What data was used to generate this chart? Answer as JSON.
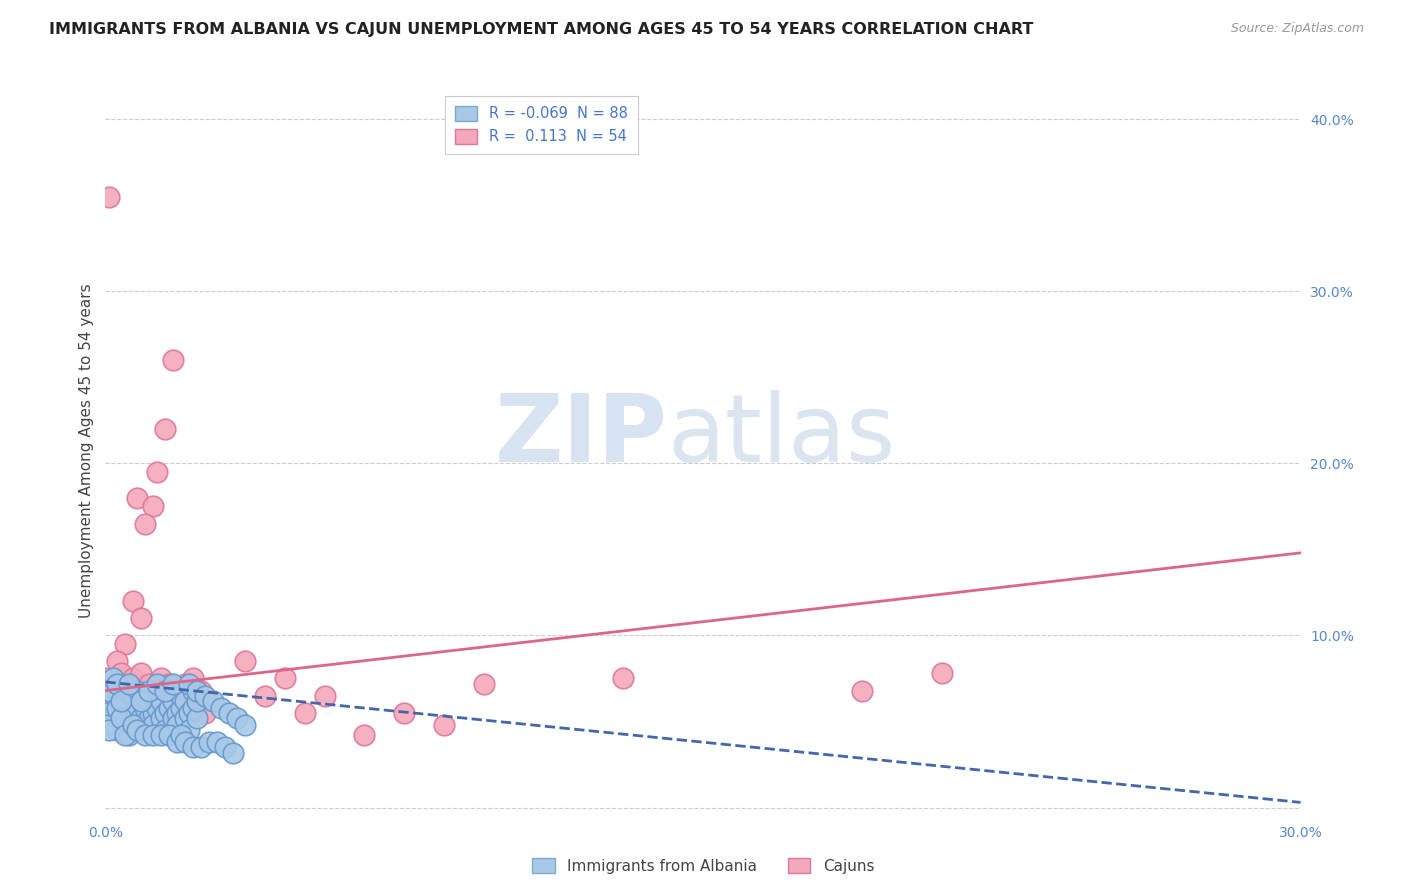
{
  "title": "IMMIGRANTS FROM ALBANIA VS CAJUN UNEMPLOYMENT AMONG AGES 45 TO 54 YEARS CORRELATION CHART",
  "source": "Source: ZipAtlas.com",
  "ylabel": "Unemployment Among Ages 45 to 54 years",
  "xlim": [
    0.0,
    0.3
  ],
  "ylim": [
    -0.005,
    0.42
  ],
  "series1_label": "Immigrants from Albania",
  "series2_label": "Cajuns",
  "series1_color": "#a8c8e8",
  "series2_color": "#f4a8bc",
  "series1_edge_color": "#6699cc",
  "series2_edge_color": "#dd7799",
  "trendline1_color": "#4466aa",
  "trendline2_color": "#dd6688",
  "watermark_zip": "ZIP",
  "watermark_atlas": "atlas",
  "background_color": "#ffffff",
  "grid_color": "#cccccc",
  "trendline1_x": [
    0.0,
    0.3
  ],
  "trendline1_y": [
    0.073,
    0.003
  ],
  "trendline2_x": [
    0.0,
    0.3
  ],
  "trendline2_y": [
    0.068,
    0.148
  ],
  "series1_points": [
    [
      0.001,
      0.055
    ],
    [
      0.001,
      0.062
    ],
    [
      0.002,
      0.058
    ],
    [
      0.002,
      0.048
    ],
    [
      0.002,
      0.07
    ],
    [
      0.003,
      0.052
    ],
    [
      0.003,
      0.065
    ],
    [
      0.003,
      0.045
    ],
    [
      0.004,
      0.058
    ],
    [
      0.004,
      0.068
    ],
    [
      0.005,
      0.055
    ],
    [
      0.005,
      0.062
    ],
    [
      0.005,
      0.048
    ],
    [
      0.006,
      0.058
    ],
    [
      0.006,
      0.065
    ],
    [
      0.006,
      0.042
    ],
    [
      0.007,
      0.055
    ],
    [
      0.007,
      0.062
    ],
    [
      0.008,
      0.058
    ],
    [
      0.008,
      0.068
    ],
    [
      0.009,
      0.052
    ],
    [
      0.009,
      0.045
    ],
    [
      0.01,
      0.058
    ],
    [
      0.01,
      0.065
    ],
    [
      0.011,
      0.052
    ],
    [
      0.011,
      0.062
    ],
    [
      0.012,
      0.055
    ],
    [
      0.012,
      0.048
    ],
    [
      0.013,
      0.058
    ],
    [
      0.013,
      0.065
    ],
    [
      0.014,
      0.052
    ],
    [
      0.014,
      0.062
    ],
    [
      0.015,
      0.055
    ],
    [
      0.015,
      0.045
    ],
    [
      0.016,
      0.058
    ],
    [
      0.016,
      0.068
    ],
    [
      0.017,
      0.052
    ],
    [
      0.017,
      0.062
    ],
    [
      0.018,
      0.055
    ],
    [
      0.018,
      0.048
    ],
    [
      0.019,
      0.058
    ],
    [
      0.019,
      0.065
    ],
    [
      0.02,
      0.052
    ],
    [
      0.02,
      0.062
    ],
    [
      0.021,
      0.055
    ],
    [
      0.021,
      0.045
    ],
    [
      0.022,
      0.058
    ],
    [
      0.022,
      0.068
    ],
    [
      0.023,
      0.052
    ],
    [
      0.023,
      0.062
    ],
    [
      0.0,
      0.062
    ],
    [
      0.0,
      0.055
    ],
    [
      0.0,
      0.048
    ],
    [
      0.001,
      0.045
    ],
    [
      0.001,
      0.068
    ],
    [
      0.002,
      0.075
    ],
    [
      0.003,
      0.058
    ],
    [
      0.003,
      0.072
    ],
    [
      0.004,
      0.052
    ],
    [
      0.004,
      0.062
    ],
    [
      0.005,
      0.042
    ],
    [
      0.006,
      0.072
    ],
    [
      0.007,
      0.048
    ],
    [
      0.008,
      0.045
    ],
    [
      0.009,
      0.062
    ],
    [
      0.01,
      0.042
    ],
    [
      0.011,
      0.068
    ],
    [
      0.012,
      0.042
    ],
    [
      0.013,
      0.072
    ],
    [
      0.014,
      0.042
    ],
    [
      0.015,
      0.068
    ],
    [
      0.016,
      0.042
    ],
    [
      0.017,
      0.072
    ],
    [
      0.018,
      0.038
    ],
    [
      0.019,
      0.042
    ],
    [
      0.02,
      0.038
    ],
    [
      0.021,
      0.072
    ],
    [
      0.022,
      0.035
    ],
    [
      0.023,
      0.068
    ],
    [
      0.024,
      0.035
    ],
    [
      0.025,
      0.065
    ],
    [
      0.026,
      0.038
    ],
    [
      0.027,
      0.062
    ],
    [
      0.028,
      0.038
    ],
    [
      0.029,
      0.058
    ],
    [
      0.03,
      0.035
    ],
    [
      0.031,
      0.055
    ],
    [
      0.032,
      0.032
    ],
    [
      0.033,
      0.052
    ],
    [
      0.035,
      0.048
    ]
  ],
  "series2_points": [
    [
      0.001,
      0.355
    ],
    [
      0.017,
      0.26
    ],
    [
      0.015,
      0.22
    ],
    [
      0.013,
      0.195
    ],
    [
      0.008,
      0.18
    ],
    [
      0.012,
      0.175
    ],
    [
      0.01,
      0.165
    ],
    [
      0.005,
      0.095
    ],
    [
      0.007,
      0.12
    ],
    [
      0.009,
      0.11
    ],
    [
      0.0,
      0.075
    ],
    [
      0.001,
      0.07
    ],
    [
      0.002,
      0.065
    ],
    [
      0.003,
      0.055
    ],
    [
      0.003,
      0.085
    ],
    [
      0.004,
      0.062
    ],
    [
      0.004,
      0.078
    ],
    [
      0.005,
      0.058
    ],
    [
      0.005,
      0.072
    ],
    [
      0.006,
      0.065
    ],
    [
      0.006,
      0.055
    ],
    [
      0.007,
      0.062
    ],
    [
      0.007,
      0.075
    ],
    [
      0.008,
      0.068
    ],
    [
      0.009,
      0.058
    ],
    [
      0.009,
      0.078
    ],
    [
      0.01,
      0.065
    ],
    [
      0.011,
      0.072
    ],
    [
      0.012,
      0.058
    ],
    [
      0.013,
      0.068
    ],
    [
      0.014,
      0.075
    ],
    [
      0.015,
      0.062
    ],
    [
      0.016,
      0.072
    ],
    [
      0.017,
      0.058
    ],
    [
      0.018,
      0.065
    ],
    [
      0.019,
      0.055
    ],
    [
      0.02,
      0.072
    ],
    [
      0.021,
      0.062
    ],
    [
      0.022,
      0.075
    ],
    [
      0.023,
      0.058
    ],
    [
      0.024,
      0.068
    ],
    [
      0.025,
      0.055
    ],
    [
      0.035,
      0.085
    ],
    [
      0.04,
      0.065
    ],
    [
      0.045,
      0.075
    ],
    [
      0.05,
      0.055
    ],
    [
      0.055,
      0.065
    ],
    [
      0.065,
      0.042
    ],
    [
      0.075,
      0.055
    ],
    [
      0.085,
      0.048
    ],
    [
      0.095,
      0.072
    ],
    [
      0.13,
      0.075
    ],
    [
      0.19,
      0.068
    ],
    [
      0.21,
      0.078
    ]
  ]
}
